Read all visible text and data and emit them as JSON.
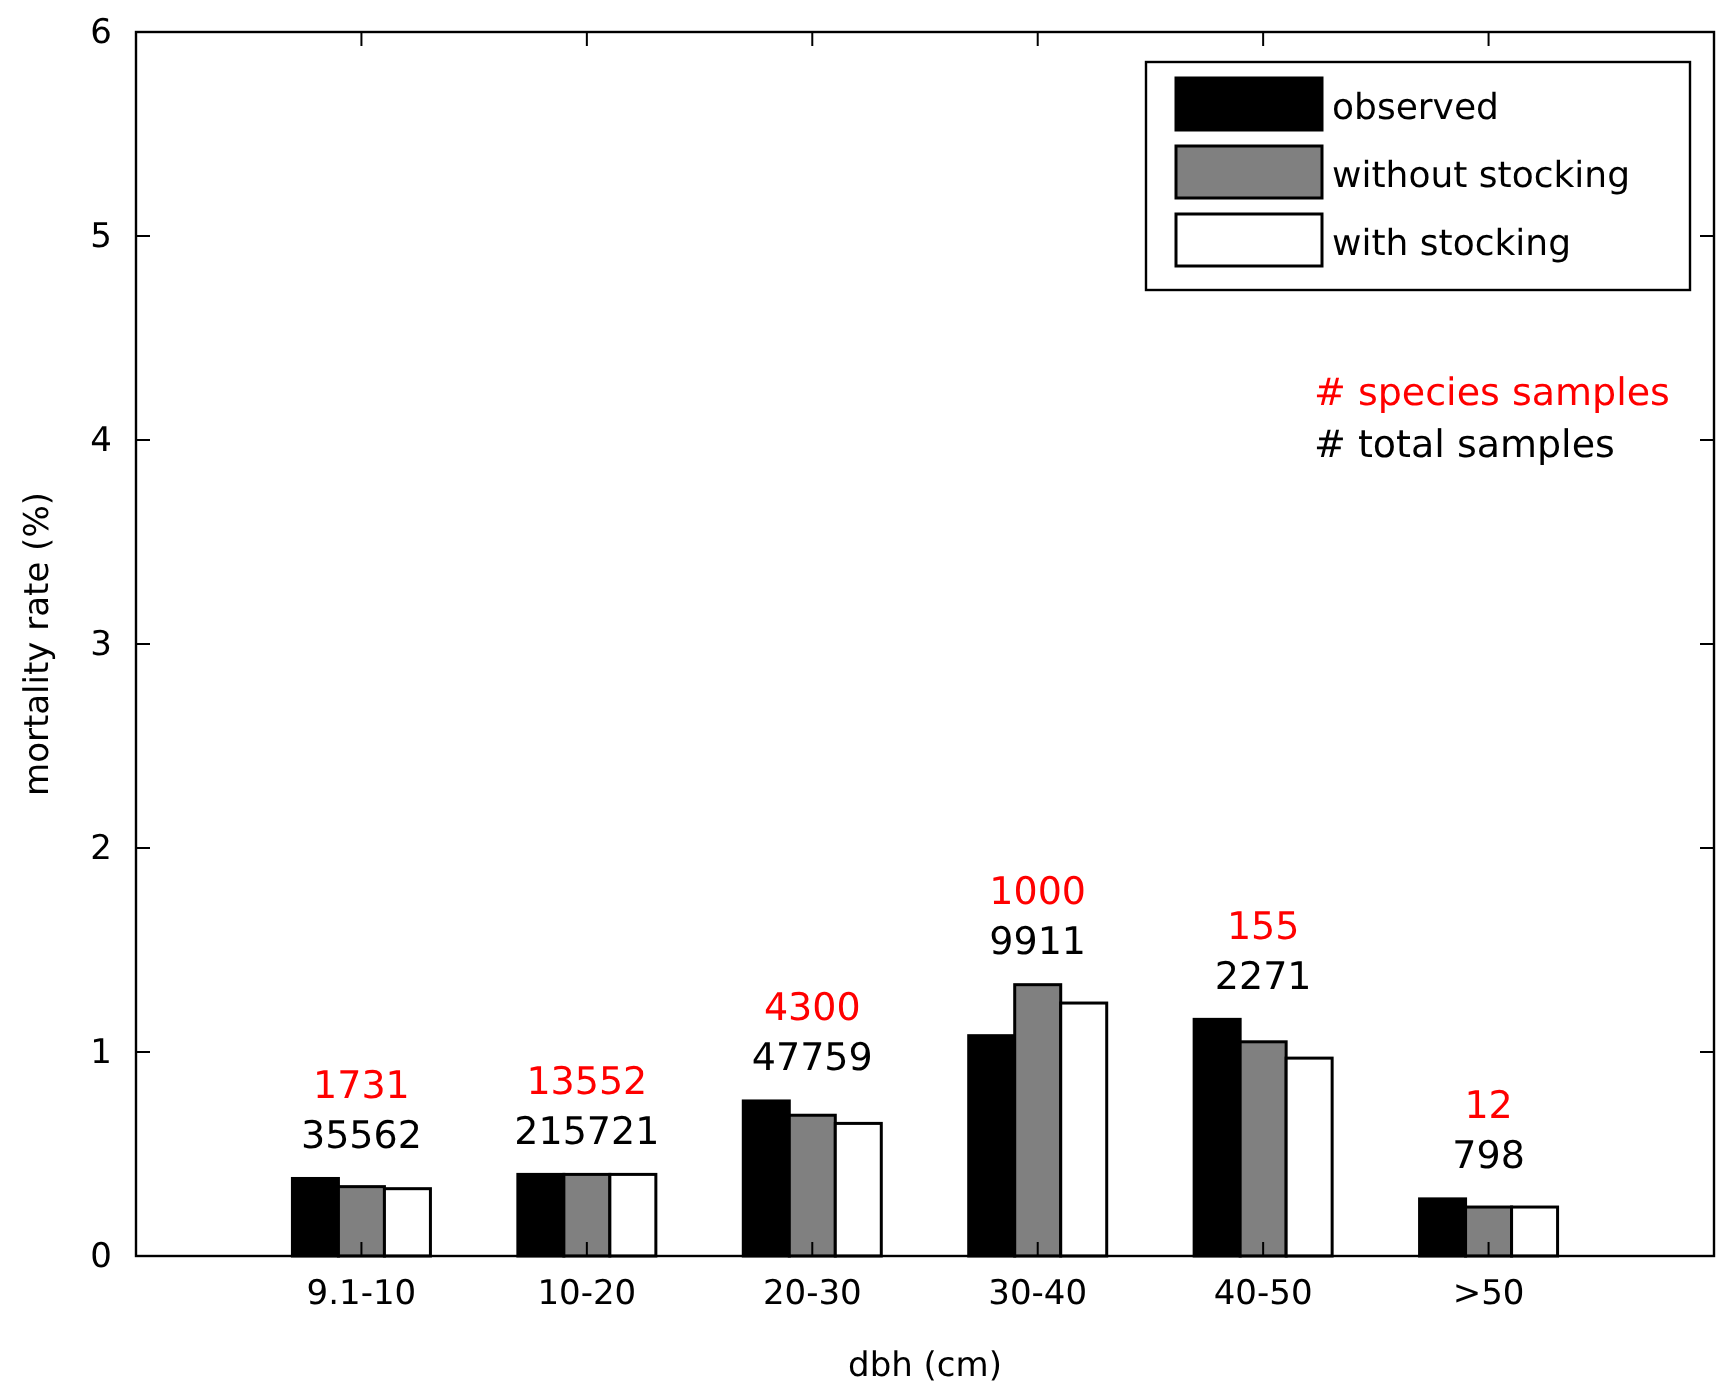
{
  "chart_data": {
    "type": "bar",
    "xlabel": "dbh (cm)",
    "ylabel": "mortality rate (%)",
    "categories": [
      "9.1-10",
      "10-20",
      "20-30",
      "30-40",
      "40-50",
      ">50"
    ],
    "series": [
      {
        "name": "observed",
        "color": "#000000",
        "values": [
          0.38,
          0.4,
          0.76,
          1.08,
          1.16,
          0.28
        ]
      },
      {
        "name": "without stocking",
        "color": "#808080",
        "values": [
          0.34,
          0.4,
          0.69,
          1.33,
          1.05,
          0.24
        ]
      },
      {
        "name": "with stocking",
        "color": "#ffffff",
        "values": [
          0.33,
          0.4,
          0.65,
          1.24,
          0.97,
          0.24
        ]
      }
    ],
    "ylim": [
      0,
      6
    ],
    "yticks": [
      0,
      1,
      2,
      3,
      4,
      5,
      6
    ],
    "grid": false,
    "legend": "top right",
    "annotations": [
      "# species samples",
      "# total samples",
      "1731",
      "35562",
      "13552",
      "215721",
      "4300",
      "47759",
      "1000",
      "9911",
      "155",
      "2271",
      "12",
      "798"
    ]
  }
}
